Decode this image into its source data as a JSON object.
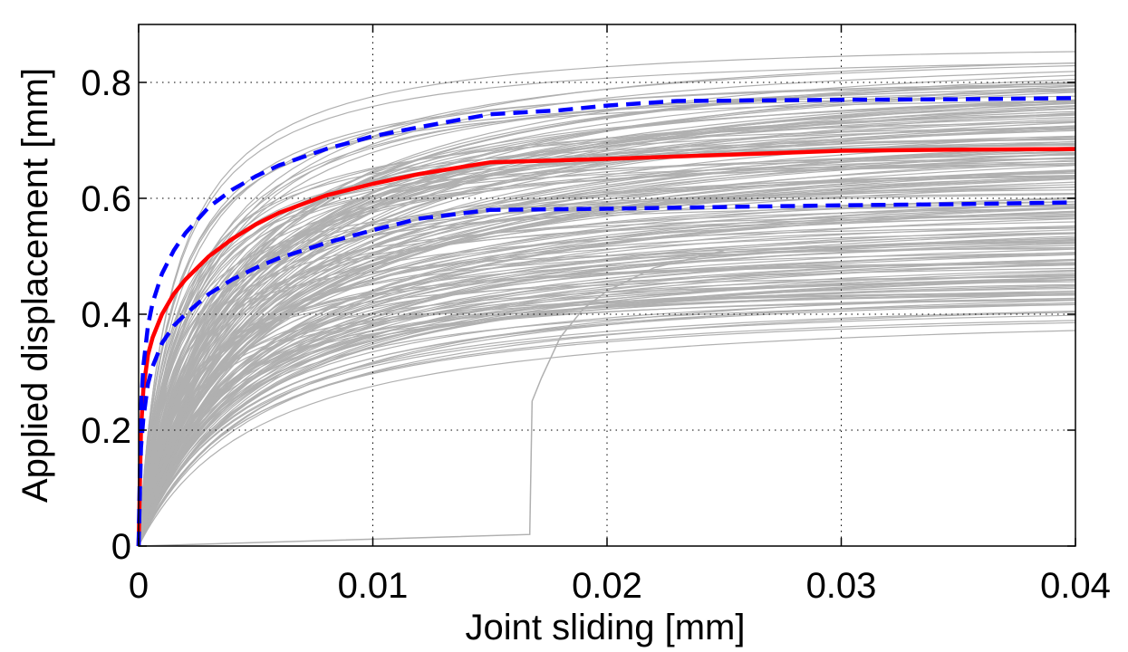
{
  "chart_data": {
    "type": "line",
    "title": "",
    "xlabel": "Joint sliding [mm]",
    "ylabel": "Applied displacement [mm]",
    "xlim": [
      0,
      0.04
    ],
    "ylim": [
      0,
      0.9
    ],
    "xticks": [
      0,
      0.01,
      0.02,
      0.03,
      0.04
    ],
    "xtick_labels": [
      "0",
      "0.01",
      "0.02",
      "0.03",
      "0.04"
    ],
    "yticks": [
      0,
      0.2,
      0.4,
      0.6,
      0.8
    ],
    "ytick_labels": [
      "0",
      "0.2",
      "0.4",
      "0.6",
      "0.8"
    ],
    "grid": true,
    "legend": "none",
    "colors": {
      "samples": "#b0b0b0",
      "mean": "#ff0000",
      "bounds": "#0000ff"
    },
    "series": [
      {
        "role": "mean",
        "style": "solid",
        "x": [
          0,
          0.0001,
          0.0002,
          0.0004,
          0.0006,
          0.001,
          0.0015,
          0.002,
          0.003,
          0.004,
          0.005,
          0.006,
          0.008,
          0.01,
          0.012,
          0.015,
          0.02,
          0.025,
          0.03,
          0.035,
          0.04
        ],
        "y": [
          0,
          0.2,
          0.27,
          0.33,
          0.36,
          0.4,
          0.435,
          0.46,
          0.5,
          0.53,
          0.555,
          0.575,
          0.605,
          0.625,
          0.642,
          0.662,
          0.668,
          0.675,
          0.682,
          0.684,
          0.685
        ]
      },
      {
        "role": "upper-bound",
        "style": "dashed",
        "x": [
          0,
          0.0001,
          0.0002,
          0.0004,
          0.0006,
          0.001,
          0.0015,
          0.002,
          0.003,
          0.004,
          0.005,
          0.006,
          0.008,
          0.01,
          0.012,
          0.015,
          0.018,
          0.02,
          0.023,
          0.03,
          0.035,
          0.04
        ],
        "y": [
          0,
          0.24,
          0.31,
          0.38,
          0.42,
          0.47,
          0.51,
          0.54,
          0.585,
          0.615,
          0.638,
          0.657,
          0.685,
          0.707,
          0.723,
          0.745,
          0.752,
          0.76,
          0.768,
          0.77,
          0.771,
          0.773
        ]
      },
      {
        "role": "lower-bound",
        "style": "dashed",
        "x": [
          0,
          0.0001,
          0.0002,
          0.0004,
          0.0006,
          0.001,
          0.0015,
          0.002,
          0.003,
          0.004,
          0.005,
          0.006,
          0.008,
          0.01,
          0.012,
          0.015,
          0.02,
          0.025,
          0.03,
          0.035,
          0.04
        ],
        "y": [
          0,
          0.17,
          0.22,
          0.28,
          0.31,
          0.35,
          0.38,
          0.4,
          0.435,
          0.46,
          0.48,
          0.497,
          0.523,
          0.545,
          0.565,
          0.58,
          0.582,
          0.585,
          0.588,
          0.59,
          0.593
        ]
      },
      {
        "role": "sample-outlier",
        "style": "thin",
        "x": [
          0,
          0.0167,
          0.0168,
          0.0172,
          0.018,
          0.019,
          0.02,
          0.022,
          0.025
        ],
        "y": [
          0,
          0.02,
          0.25,
          0.29,
          0.36,
          0.41,
          0.44,
          0.48,
          0.51
        ]
      }
    ],
    "sample_band": {
      "count": 200,
      "plateau_range": [
        0.43,
        0.89
      ]
    }
  }
}
